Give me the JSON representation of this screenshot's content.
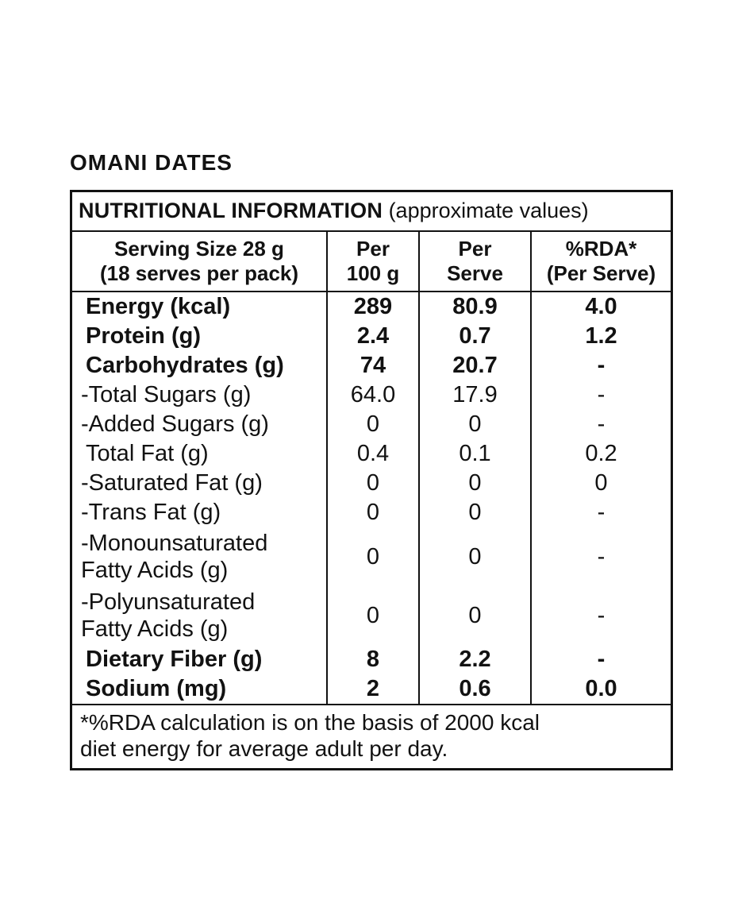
{
  "product_title": "OMANI DATES",
  "table": {
    "title": "NUTRITIONAL INFORMATION",
    "title_note": " (approximate values)",
    "columns": [
      "Serving Size 28 g\n(18 serves per pack)",
      "Per\n100 g",
      "Per\nServe",
      "%RDA*\n(Per Serve)"
    ],
    "rows": [
      {
        "label": "Energy (kcal)",
        "per_100g": "289",
        "per_serve": "80.9",
        "rda_per_serve": "4.0",
        "bold": true,
        "tall": false
      },
      {
        "label": "Protein (g)",
        "per_100g": "2.4",
        "per_serve": "0.7",
        "rda_per_serve": "1.2",
        "bold": true,
        "tall": false
      },
      {
        "label": "Carbohydrates (g)",
        "per_100g": "74",
        "per_serve": "20.7",
        "rda_per_serve": "-",
        "bold": true,
        "tall": false
      },
      {
        "label": "-Total Sugars (g)",
        "per_100g": "64.0",
        "per_serve": "17.9",
        "rda_per_serve": "-",
        "bold": false,
        "tall": false
      },
      {
        "label": "-Added Sugars (g)",
        "per_100g": "0",
        "per_serve": "0",
        "rda_per_serve": "-",
        "bold": false,
        "tall": false
      },
      {
        "label": "Total Fat (g)",
        "per_100g": "0.4",
        "per_serve": "0.1",
        "rda_per_serve": "0.2",
        "bold": false,
        "tall": false
      },
      {
        "label": "-Saturated Fat (g)",
        "per_100g": "0",
        "per_serve": "0",
        "rda_per_serve": "0",
        "bold": false,
        "tall": false
      },
      {
        "label": "-Trans Fat (g)",
        "per_100g": "0",
        "per_serve": "0",
        "rda_per_serve": "-",
        "bold": false,
        "tall": false
      },
      {
        "label": "-Monounsaturated\nFatty Acids (g)",
        "per_100g": "0",
        "per_serve": "0",
        "rda_per_serve": "-",
        "bold": false,
        "tall": true
      },
      {
        "label": "-Polyunsaturated\nFatty Acids (g)",
        "per_100g": "0",
        "per_serve": "0",
        "rda_per_serve": "-",
        "bold": false,
        "tall": true
      },
      {
        "label": "Dietary Fiber (g)",
        "per_100g": "8",
        "per_serve": "2.2",
        "rda_per_serve": "-",
        "bold": true,
        "tall": false
      },
      {
        "label": "Sodium (mg)",
        "per_100g": "2",
        "per_serve": "0.6",
        "rda_per_serve": "0.0",
        "bold": true,
        "tall": false
      }
    ],
    "footnote": "*%RDA calculation is on the basis of 2000 kcal\ndiet energy for average adult per day."
  }
}
